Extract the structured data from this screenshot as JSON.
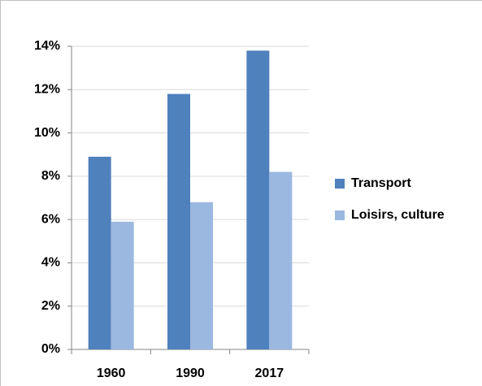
{
  "chart_data": {
    "type": "bar",
    "categories": [
      "1960",
      "1990",
      "2017"
    ],
    "series": [
      {
        "name": "Transport",
        "color": "#4f81bd",
        "values": [
          8.9,
          11.8,
          13.8
        ]
      },
      {
        "name": "Loisirs, culture",
        "color": "#9bb8e0",
        "values": [
          5.9,
          6.8,
          8.2
        ]
      }
    ],
    "ylim": [
      0,
      14
    ],
    "yticks": [
      {
        "value": 0,
        "label": "0%"
      },
      {
        "value": 2,
        "label": "2%"
      },
      {
        "value": 4,
        "label": "4%"
      },
      {
        "value": 6,
        "label": "6%"
      },
      {
        "value": 8,
        "label": "8%"
      },
      {
        "value": 10,
        "label": "10%"
      },
      {
        "value": 12,
        "label": "12%"
      },
      {
        "value": 14,
        "label": "14%"
      }
    ],
    "grid": true,
    "legend": "right"
  }
}
